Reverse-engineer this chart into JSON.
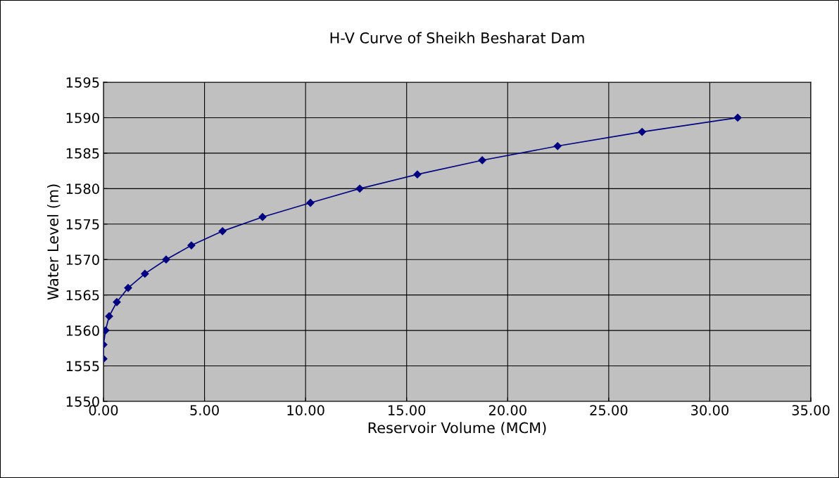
{
  "chart_data": {
    "type": "line",
    "title": "H-V Curve of Sheikh Besharat Dam",
    "xlabel": "Reservoir Volume (MCM)",
    "ylabel": "Water Level (m)",
    "x": [
      0.0,
      0.0,
      0.1,
      0.28,
      0.66,
      1.22,
      2.05,
      3.1,
      4.35,
      5.89,
      7.87,
      10.24,
      12.68,
      15.53,
      18.74,
      22.47,
      26.65,
      31.38
    ],
    "series": [
      {
        "color": "#000080",
        "values": [
          1556,
          1558,
          1560,
          1562,
          1564,
          1566,
          1568,
          1570,
          1572,
          1574,
          1576,
          1578,
          1580,
          1582,
          1584,
          1586,
          1588,
          1590
        ]
      }
    ],
    "xlim": [
      0,
      35
    ],
    "xticks": [
      {
        "value": 0,
        "label": "0.00"
      },
      {
        "value": 5,
        "label": "5.00"
      },
      {
        "value": 10,
        "label": "10.00"
      },
      {
        "value": 15,
        "label": "15.00"
      },
      {
        "value": 20,
        "label": "20.00"
      },
      {
        "value": 25,
        "label": "25.00"
      },
      {
        "value": 30,
        "label": "30.00"
      },
      {
        "value": 35,
        "label": "35.00"
      }
    ],
    "ylim": [
      1550,
      1595
    ],
    "yticks": [
      1550,
      1555,
      1560,
      1565,
      1570,
      1575,
      1580,
      1585,
      1590,
      1595
    ],
    "grid": true,
    "marker": "diamond",
    "line_style": "solid"
  }
}
